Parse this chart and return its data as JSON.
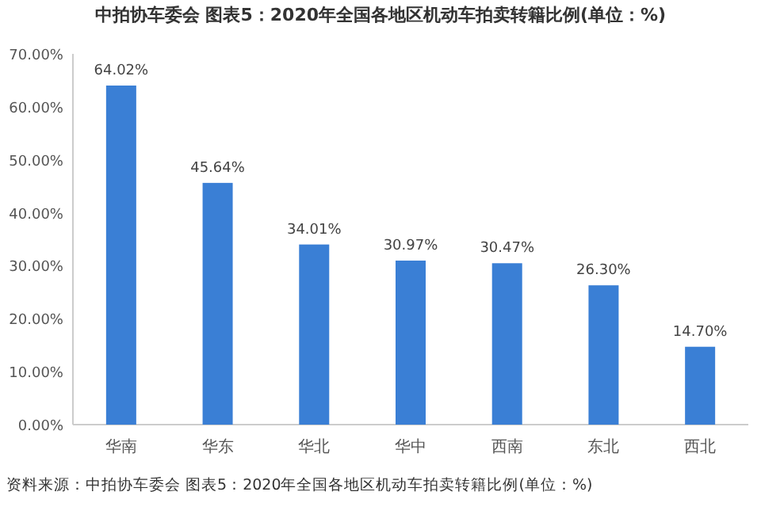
{
  "chart_data": {
    "type": "bar",
    "title": "中拍协车委会 图表5：2020年全国各地区机动车拍卖转籍比例(单位：%)",
    "categories": [
      "华南",
      "华东",
      "华北",
      "华中",
      "西南",
      "东北",
      "西北"
    ],
    "values": [
      64.02,
      45.64,
      34.01,
      30.97,
      30.47,
      26.3,
      14.7
    ],
    "value_labels": [
      "64.02%",
      "45.64%",
      "34.01%",
      "30.97%",
      "30.47%",
      "26.30%",
      "14.70%"
    ],
    "color": "#3a7fd5",
    "ylim": [
      0,
      70
    ],
    "yticks": [
      {
        "value": 0,
        "label": "0.00%"
      },
      {
        "value": 10,
        "label": "10.00%"
      },
      {
        "value": 20,
        "label": "20.00%"
      },
      {
        "value": 30,
        "label": "30.00%"
      },
      {
        "value": 40,
        "label": "40.00%"
      },
      {
        "value": 50,
        "label": "50.00%"
      },
      {
        "value": 60,
        "label": "60.00%"
      },
      {
        "value": 70,
        "label": "70.00%"
      }
    ],
    "grid": false,
    "annotations": [
      "资料来源：中拍协车委会 图表5：2020年全国各地区机动车拍卖转籍比例(单位：%)"
    ]
  }
}
